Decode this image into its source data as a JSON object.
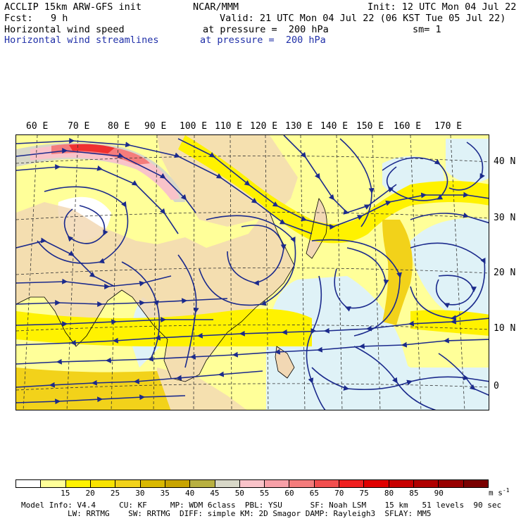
{
  "header": {
    "model_title": "ACCLIP 15km ARW-GFS init",
    "org": "NCAR/MMM",
    "init": "Init: 12 UTC Mon 04 Jul 22",
    "fcst_label": "Fcst:",
    "fcst_value": "9 h",
    "valid": "Valid: 21 UTC Mon 04 Jul 22 (06 KST Tue 05 Jul 22)",
    "field1_name": "Horizontal wind speed",
    "field1_level": "at pressure =  200 hPa",
    "smoothing": "sm= 1",
    "field2_name": "Horizontal wind streamlines",
    "field2_level": "at pressure =  200 hPa"
  },
  "map": {
    "lon_labels": [
      "60 E",
      "70 E",
      "80 E",
      "90 E",
      "100 E",
      "110 E",
      "120 E",
      "130 E",
      "140 E",
      "150 E",
      "160 E",
      "170 E"
    ],
    "lat_labels": [
      "40 N",
      "30 N",
      "20 N",
      "10 N",
      "0"
    ],
    "colors": {
      "ocean_low": "#dff2f7",
      "land": "#f2d8b4",
      "speed_15_20": "#ffff99",
      "speed_20_25": "#fff200",
      "speed_25_30": "#f2d21a",
      "jet_50_60": "#f9c3c9",
      "jet_60_70": "#f47c7c",
      "jet_70_80": "#f03030",
      "gray_45_50": "#d8d8c8",
      "streamline": "#1b2a8c"
    }
  },
  "colorbar": {
    "colors": [
      "#ffffff",
      "#ffff99",
      "#fff200",
      "#f8e300",
      "#f2d21a",
      "#d9b800",
      "#c8a400",
      "#b8b040",
      "#d8d8c8",
      "#f9c3c9",
      "#f7a0a8",
      "#f47c7c",
      "#f24f4f",
      "#f02020",
      "#e00000",
      "#c80000",
      "#b00000",
      "#980000",
      "#7a0000"
    ],
    "labels": [
      "15",
      "20",
      "25",
      "30",
      "35",
      "40",
      "45",
      "50",
      "55",
      "60",
      "65",
      "70",
      "75",
      "80",
      "85",
      "90"
    ],
    "units": "m s",
    "units_exp": "-1"
  },
  "model_info": {
    "line1": "Model Info: V4.4     CU: KF     MP: WDM 6class  PBL: YSU      SF: Noah LSM    15 km   51 levels  90 sec",
    "line2": "LW: RRTMG    SW: RRTMG  DIFF: simple KM: 2D Smagor DAMP: Rayleigh3  SFLAY: MM5"
  }
}
